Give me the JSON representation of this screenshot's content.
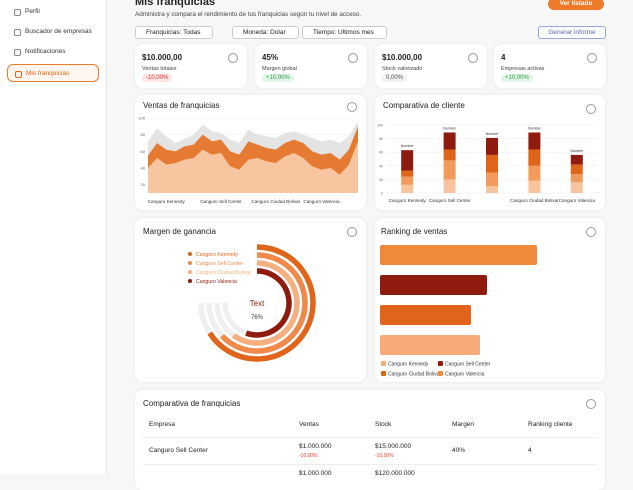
{
  "sidebar": {
    "items": [
      "Perfil",
      "Buscador de empresas",
      "Notificaciones",
      "Mis franquicias"
    ],
    "active": 3
  },
  "header": {
    "title": "Mis franquicias",
    "subtitle": "Administra y compara el rendimiento de tus franquicias según tu nivel de acceso.",
    "button": "Ver listado"
  },
  "filters": {
    "items": [
      "Franquicias: Todas",
      "Moneda: Dolar",
      "Tiempo: Ultimos mes"
    ],
    "report": "Generar informe"
  },
  "kpis": [
    {
      "value": "$10.000,00",
      "label": "Ventas totales",
      "change": "-10,00%",
      "trend": "down"
    },
    {
      "value": "45%",
      "label": "Margen global",
      "change": "+10,00%",
      "trend": "up"
    },
    {
      "value": "$10.000,00",
      "label": "Stock valorizado",
      "change": "0,00%",
      "trend": "flat"
    },
    {
      "value": "4",
      "label": "Empresas activas",
      "change": "+10,00%",
      "trend": "up"
    }
  ],
  "chart_data": [
    {
      "type": "area",
      "title": "Ventas de franquicias",
      "categories": [
        null,
        null,
        "Canguro Kennedy",
        null,
        null,
        null,
        null,
        null,
        "Canguro Sell Center",
        null,
        null,
        null,
        null,
        null,
        "Canguro Ciudad Bolivar",
        null,
        null,
        null,
        null,
        "Canguro Valencia",
        null,
        null,
        null,
        null
      ],
      "ylim": [
        10,
        100
      ],
      "yticks": [
        20,
        40,
        60,
        80,
        100
      ],
      "grid": true,
      "series": [
        {
          "color": "#e4e4e4",
          "values": [
            72,
            88,
            78,
            70,
            75,
            80,
            92,
            84,
            82,
            74,
            70,
            86,
            80,
            78,
            76,
            82,
            84,
            80,
            76,
            72,
            74,
            70,
            78,
            96
          ]
        },
        {
          "color": "#e57a33",
          "values": [
            55,
            70,
            62,
            60,
            66,
            68,
            80,
            72,
            74,
            60,
            56,
            72,
            68,
            64,
            62,
            70,
            74,
            70,
            60,
            56,
            58,
            50,
            62,
            90
          ]
        },
        {
          "color": "#f7c6a0",
          "values": [
            40,
            52,
            44,
            46,
            50,
            52,
            62,
            56,
            58,
            42,
            38,
            50,
            52,
            48,
            46,
            54,
            58,
            52,
            42,
            38,
            40,
            32,
            44,
            72
          ]
        }
      ]
    },
    {
      "type": "stacked_bar",
      "title": "Comparativa de cliente",
      "categories": [
        "Canguro Kennedy",
        "Canguro Sell Center",
        null,
        "Canguro Ciudad Bolivar",
        "Canguro Valencia"
      ],
      "top_labels": [
        "Number",
        "Number",
        "Number",
        "Number",
        "Number"
      ],
      "ylim": [
        0,
        100
      ],
      "yticks": [
        0,
        20,
        40,
        60,
        80,
        100
      ],
      "grid": true,
      "series": [
        {
          "color": "#f8c49f",
          "values": [
            12,
            20,
            10,
            18,
            16
          ]
        },
        {
          "color": "#f29a5b",
          "values": [
            12,
            28,
            20,
            22,
            12
          ]
        },
        {
          "color": "#e0651a",
          "values": [
            9,
            16,
            26,
            24,
            14
          ]
        },
        {
          "color": "#8e1b0e",
          "values": [
            30,
            25,
            25,
            25,
            14
          ]
        }
      ]
    },
    {
      "type": "radial_bar",
      "title": "Margen de ganancia",
      "center_text": "Text",
      "center_value": "76%",
      "series": [
        {
          "name": "Canguro Kennedy",
          "color": "#e0651a",
          "values": [
            88
          ]
        },
        {
          "name": "Canguro Sell Center",
          "color": "#f0894a",
          "values": [
            84
          ]
        },
        {
          "name": "Canguro Ciudad Bolivar",
          "color": "#f6b07f",
          "values": [
            80
          ]
        },
        {
          "name": "Canguro Valencia",
          "color": "#8e1b0e",
          "values": [
            74
          ]
        }
      ]
    },
    {
      "type": "hbar",
      "title": "Ranking de ventas",
      "series": [
        {
          "name": "Canguro Kennedy",
          "color": "#f7ab78",
          "values": [
            100
          ]
        },
        {
          "name": "Canguro Sell Center",
          "color": "#8e1b0e",
          "values": [
            107
          ]
        },
        {
          "name": "Canguro Ciudad Bolivar",
          "color": "#e0651a",
          "values": [
            91
          ]
        },
        {
          "name": "Canguro Valencia",
          "color": "#f08a3a",
          "values": [
            157
          ]
        }
      ]
    }
  ],
  "table": {
    "title": "Comparativa de franquicias",
    "headers": [
      "Empresa",
      "Ventas",
      "Stock",
      "Margen",
      "Ranking cliente"
    ],
    "rows": [
      {
        "empresa": "Canguro Sell Center",
        "ventas": "$1.000.000",
        "ventas_change": "-10,00%",
        "stock": "$15.000.000",
        "stock_change": "-10,00%",
        "margen": "40%",
        "ranking": "4"
      },
      {
        "ventas": "$1.000.000",
        "stock": "$120.000.000"
      }
    ]
  }
}
